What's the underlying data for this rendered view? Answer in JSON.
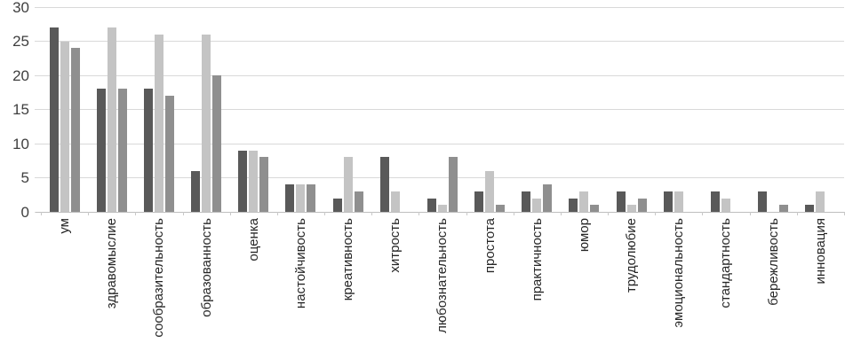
{
  "chart_data": {
    "type": "bar",
    "title": "",
    "xlabel": "",
    "ylabel": "",
    "categories": [
      "ум",
      "здравомыслие",
      "сообразительность",
      "образованность",
      "оценка",
      "настойчивость",
      "креативность",
      "хитрость",
      "любознательность",
      "простота",
      "практичность",
      "юмор",
      "трудолюбие",
      "эмоциональность",
      "стандартность",
      "бережливость",
      "инновация"
    ],
    "series": [
      {
        "name": "series-1",
        "color": "#595959",
        "values": [
          27,
          18,
          18,
          6,
          9,
          4,
          2,
          8,
          2,
          3,
          3,
          2,
          3,
          3,
          3,
          3,
          1
        ]
      },
      {
        "name": "series-2",
        "color": "#c4c4c4",
        "values": [
          25,
          27,
          26,
          26,
          9,
          4,
          8,
          3,
          1,
          6,
          2,
          3,
          1,
          3,
          2,
          0,
          3
        ]
      },
      {
        "name": "series-3",
        "color": "#8f8f8f",
        "values": [
          24,
          18,
          17,
          20,
          8,
          4,
          3,
          0,
          8,
          1,
          4,
          1,
          2,
          0,
          0,
          1,
          0
        ]
      }
    ],
    "ylim": [
      0,
      30
    ],
    "yticks": [
      0,
      5,
      10,
      15,
      20,
      25,
      30
    ],
    "grid": "horizontal",
    "legend_position": "none",
    "colors": {
      "background": "#ffffff",
      "gridline": "#d9d9d9",
      "baseline": "#bfbfbf",
      "tick_text": "#3f3f3f",
      "label_text": "#262626"
    }
  }
}
